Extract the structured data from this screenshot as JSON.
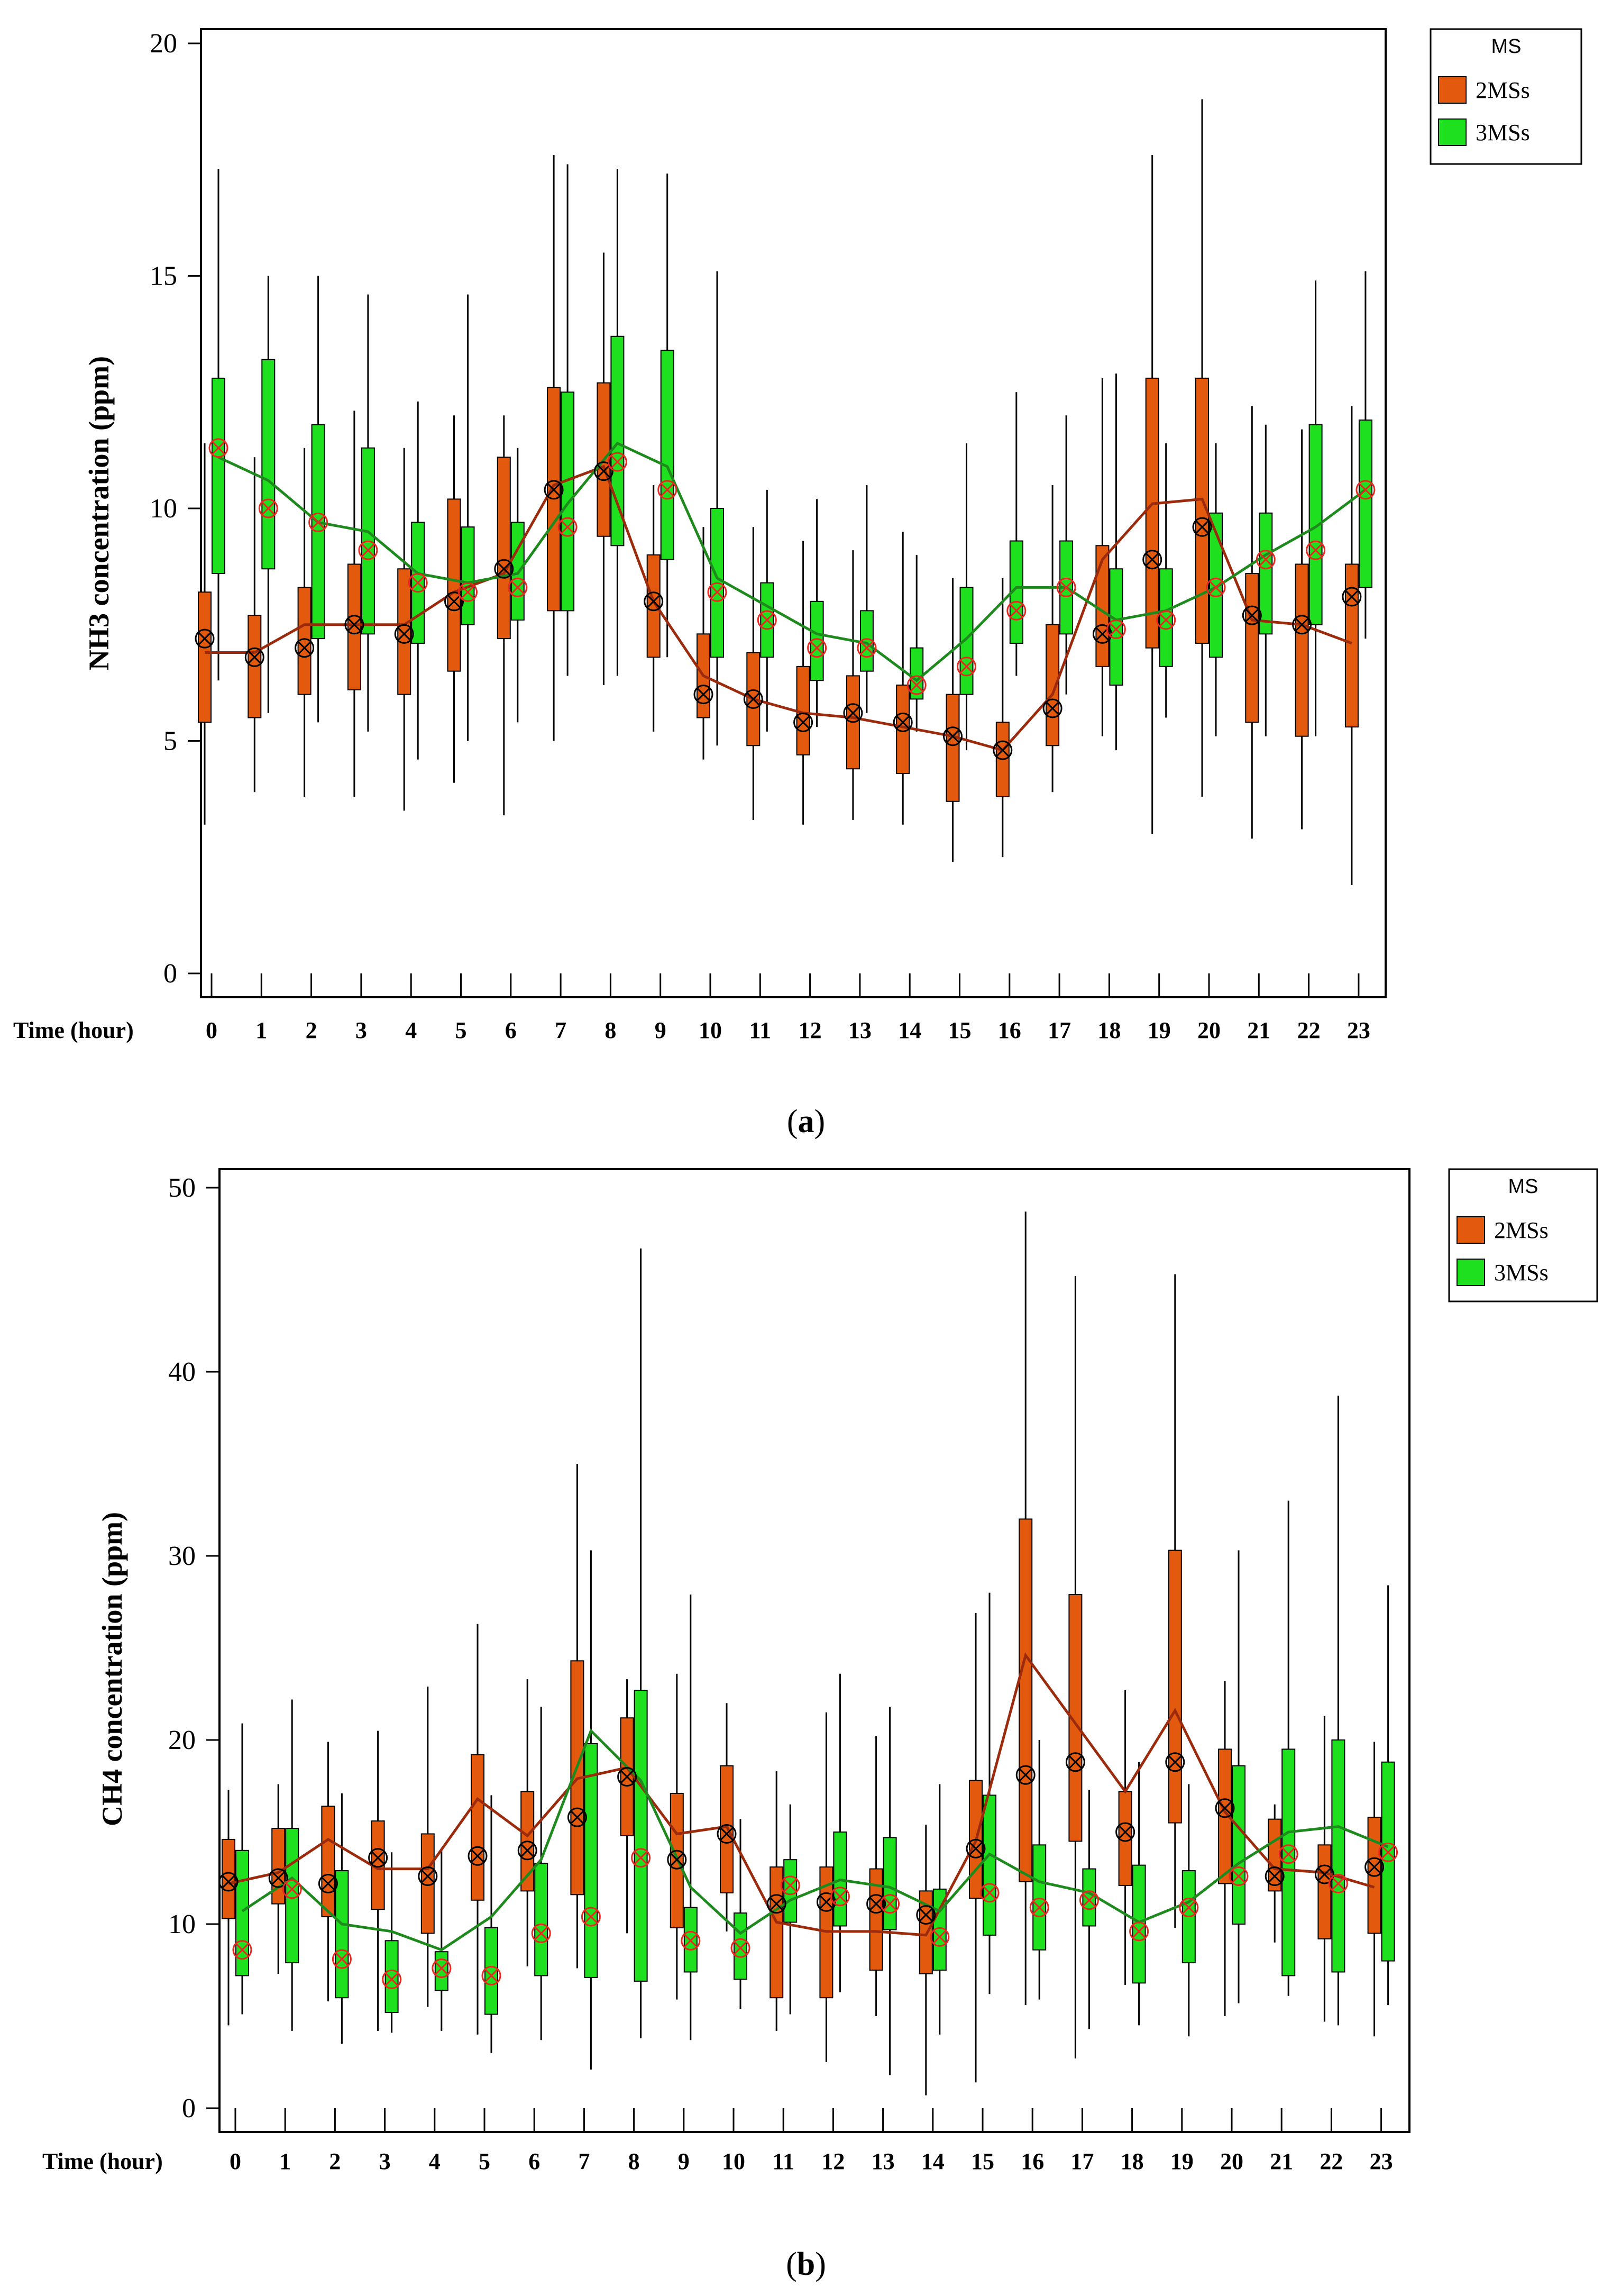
{
  "colors": {
    "c2MSs": "#e35a0e",
    "c3MSs": "#1ee01e",
    "line2": "#9b2b0c",
    "line3": "#1e8a1e",
    "meanBlack": "#000000",
    "meanRed": "#e8281e"
  },
  "chart_data": [
    {
      "id": "a",
      "type": "box",
      "caption": {
        "open": "(",
        "letter": "a",
        "close": ")"
      },
      "ylabel": "NH3 concentration (ppm)",
      "xlabel": "Time (hour)",
      "ylim": [
        0,
        20
      ],
      "yticks": [
        0,
        5,
        10,
        15,
        20
      ],
      "hours": [
        "0",
        "1",
        "2",
        "3",
        "4",
        "5",
        "6",
        "7",
        "8",
        "9",
        "10",
        "11",
        "12",
        "13",
        "14",
        "15",
        "16",
        "17",
        "18",
        "19",
        "20",
        "21",
        "22",
        "23"
      ],
      "legend": {
        "title": "MS",
        "items": [
          {
            "label": "2MSs",
            "color": "#e35a0e"
          },
          {
            "label": "3MSs",
            "color": "#1ee01e"
          }
        ]
      },
      "series": [
        {
          "name": "2MSs",
          "q1": [
            5.4,
            5.5,
            6.0,
            6.1,
            6.0,
            6.5,
            7.2,
            7.8,
            9.4,
            6.8,
            5.5,
            4.9,
            4.7,
            4.4,
            4.3,
            3.7,
            3.8,
            4.9,
            6.6,
            7.0,
            7.1,
            5.4,
            5.1,
            5.3
          ],
          "q3": [
            8.2,
            7.7,
            8.3,
            8.8,
            8.7,
            10.2,
            11.1,
            12.6,
            12.7,
            9.0,
            7.3,
            6.9,
            6.6,
            6.4,
            6.2,
            6.0,
            5.4,
            7.5,
            9.2,
            12.8,
            12.8,
            8.6,
            8.8,
            8.8
          ],
          "lo": [
            3.2,
            3.9,
            3.8,
            3.8,
            3.5,
            4.1,
            3.4,
            5.0,
            6.2,
            5.2,
            4.6,
            3.3,
            3.2,
            3.3,
            3.2,
            2.4,
            2.5,
            3.9,
            5.1,
            3.0,
            3.8,
            2.9,
            3.1,
            1.9
          ],
          "hi": [
            11.4,
            11.1,
            11.3,
            12.1,
            11.3,
            12.0,
            12.0,
            17.6,
            15.5,
            10.5,
            9.6,
            9.6,
            9.3,
            9.1,
            9.5,
            8.5,
            8.5,
            10.5,
            12.8,
            17.6,
            18.8,
            12.2,
            11.7,
            12.2
          ],
          "median": [
            6.9,
            6.9,
            7.5,
            7.5,
            7.5,
            8.2,
            8.6,
            10.5,
            10.9,
            8.0,
            6.4,
            5.9,
            5.6,
            5.5,
            5.3,
            5.1,
            4.8,
            6.0,
            8.9,
            10.1,
            10.2,
            7.6,
            7.5,
            7.1
          ],
          "mean": [
            7.2,
            6.8,
            7.0,
            7.5,
            7.3,
            8.0,
            8.7,
            10.4,
            10.8,
            8.0,
            6.0,
            5.9,
            5.4,
            5.6,
            5.4,
            5.1,
            4.8,
            5.7,
            7.3,
            8.9,
            9.6,
            7.7,
            7.5,
            8.1
          ]
        },
        {
          "name": "3MSs",
          "q1": [
            8.6,
            8.7,
            7.2,
            7.3,
            7.1,
            7.5,
            7.6,
            7.8,
            9.2,
            8.9,
            6.8,
            6.8,
            6.3,
            6.5,
            5.9,
            6.0,
            7.1,
            7.3,
            6.2,
            6.6,
            6.8,
            7.3,
            7.5,
            8.3
          ],
          "q3": [
            12.8,
            13.2,
            11.8,
            11.3,
            9.7,
            9.6,
            9.7,
            12.5,
            13.7,
            13.4,
            10.0,
            8.4,
            8.0,
            7.8,
            7.0,
            8.3,
            9.3,
            9.3,
            8.7,
            8.7,
            9.9,
            9.9,
            11.8,
            11.9
          ],
          "lo": [
            6.3,
            5.6,
            5.4,
            5.2,
            4.6,
            5.0,
            5.4,
            6.4,
            6.4,
            6.8,
            4.9,
            5.2,
            5.3,
            5.6,
            5.2,
            4.8,
            6.4,
            6.0,
            4.8,
            5.5,
            5.1,
            5.1,
            5.1,
            7.2
          ],
          "hi": [
            17.3,
            15.0,
            15.0,
            14.6,
            12.3,
            14.6,
            11.3,
            17.4,
            17.3,
            17.2,
            15.1,
            10.4,
            10.2,
            10.5,
            9.0,
            11.4,
            12.5,
            12.0,
            12.9,
            11.4,
            11.4,
            11.8,
            14.9,
            15.1
          ],
          "median": [
            11.1,
            10.6,
            9.7,
            9.5,
            8.6,
            8.4,
            8.6,
            10.1,
            11.4,
            10.9,
            8.5,
            7.9,
            7.3,
            7.1,
            6.3,
            7.2,
            8.3,
            8.3,
            7.6,
            7.8,
            8.3,
            9.0,
            9.6,
            10.4
          ],
          "mean": [
            11.3,
            10.0,
            9.7,
            9.1,
            8.4,
            8.2,
            8.3,
            9.6,
            11.0,
            10.4,
            8.2,
            7.6,
            7.0,
            7.0,
            6.2,
            6.6,
            7.8,
            8.3,
            7.4,
            7.6,
            8.3,
            8.9,
            9.1,
            10.4
          ]
        }
      ]
    },
    {
      "id": "b",
      "type": "box",
      "caption": {
        "open": "(",
        "letter": "b",
        "close": ")"
      },
      "ylabel": "CH4 concentration (ppm)",
      "xlabel": "Time (hour)",
      "ylim": [
        0,
        50
      ],
      "yticks": [
        0,
        10,
        20,
        30,
        40,
        50
      ],
      "hours": [
        "0",
        "1",
        "2",
        "3",
        "4",
        "5",
        "6",
        "7",
        "8",
        "9",
        "10",
        "11",
        "12",
        "13",
        "14",
        "15",
        "16",
        "17",
        "18",
        "19",
        "20",
        "21",
        "22",
        "23"
      ],
      "legend": {
        "title": "MS",
        "items": [
          {
            "label": "2MSs",
            "color": "#e35a0e"
          },
          {
            "label": "3MSs",
            "color": "#1ee01e"
          }
        ]
      },
      "series": [
        {
          "name": "2MSs",
          "q1": [
            10.3,
            11.1,
            10.4,
            10.8,
            9.5,
            11.3,
            11.8,
            11.6,
            14.8,
            9.8,
            11.7,
            6.0,
            6.0,
            7.5,
            7.3,
            11.4,
            12.3,
            14.5,
            12.1,
            15.5,
            12.2,
            11.8,
            9.2,
            9.5
          ],
          "q3": [
            14.6,
            15.2,
            16.4,
            15.6,
            14.9,
            19.2,
            17.2,
            24.3,
            21.2,
            17.1,
            18.6,
            13.1,
            13.1,
            13.0,
            11.8,
            17.8,
            32.0,
            27.9,
            17.2,
            30.3,
            19.5,
            15.7,
            14.3,
            15.8
          ],
          "lo": [
            4.5,
            7.3,
            5.8,
            4.2,
            5.5,
            4.0,
            7.7,
            7.6,
            9.5,
            5.9,
            9.6,
            4.2,
            2.5,
            5.0,
            0.7,
            1.4,
            5.6,
            2.7,
            6.7,
            9.8,
            5.0,
            9.0,
            4.7,
            3.9
          ],
          "hi": [
            17.3,
            17.6,
            19.9,
            20.5,
            22.9,
            26.3,
            23.3,
            35.0,
            23.3,
            23.6,
            22.0,
            18.3,
            21.5,
            20.2,
            15.4,
            26.9,
            48.7,
            45.2,
            22.7,
            45.3,
            23.2,
            16.5,
            21.3,
            19.9
          ],
          "median": [
            12.2,
            12.8,
            14.6,
            13.0,
            13.0,
            16.8,
            14.8,
            17.9,
            18.5,
            14.9,
            15.3,
            10.1,
            9.6,
            9.6,
            9.4,
            14.5,
            24.6,
            20.9,
            17.2,
            21.6,
            16.1,
            13.0,
            12.8,
            12.0
          ],
          "mean": [
            12.3,
            12.5,
            12.2,
            13.6,
            12.6,
            13.7,
            14.0,
            15.8,
            18.0,
            13.5,
            14.9,
            11.1,
            11.2,
            11.1,
            10.5,
            14.1,
            18.1,
            18.8,
            15.0,
            18.8,
            16.3,
            12.6,
            12.7,
            13.1
          ]
        },
        {
          "name": "3MSs",
          "q1": [
            7.2,
            7.9,
            6.0,
            5.2,
            6.4,
            5.1,
            7.2,
            7.1,
            6.9,
            7.4,
            7.0,
            10.1,
            9.9,
            9.7,
            7.5,
            9.4,
            8.6,
            9.9,
            6.8,
            7.9,
            10.0,
            7.2,
            7.4,
            8.0
          ],
          "q3": [
            14.0,
            15.2,
            12.9,
            9.1,
            8.5,
            9.8,
            13.3,
            19.8,
            22.7,
            10.9,
            10.6,
            13.5,
            15.0,
            14.7,
            11.9,
            17.0,
            14.3,
            13.0,
            13.2,
            12.9,
            18.6,
            19.5,
            20.0,
            18.8
          ],
          "lo": [
            5.1,
            4.2,
            3.5,
            4.1,
            4.2,
            3.0,
            3.7,
            2.1,
            3.8,
            3.7,
            5.4,
            5.1,
            6.3,
            1.8,
            4.0,
            6.2,
            5.9,
            4.3,
            4.5,
            3.9,
            5.7,
            6.1,
            4.5,
            5.6
          ],
          "hi": [
            20.9,
            22.2,
            17.1,
            13.9,
            14.1,
            17.0,
            21.8,
            30.3,
            46.7,
            27.9,
            15.7,
            16.5,
            23.6,
            21.8,
            17.6,
            28.0,
            20.0,
            17.3,
            18.8,
            17.6,
            30.3,
            33.0,
            38.7,
            28.4
          ],
          "median": [
            10.7,
            12.5,
            10.0,
            9.6,
            8.6,
            10.4,
            13.5,
            20.5,
            17.8,
            12.0,
            9.5,
            11.3,
            12.4,
            12.0,
            10.7,
            13.8,
            12.3,
            11.7,
            10.1,
            11.2,
            13.3,
            15.0,
            15.3,
            14.2
          ],
          "mean": [
            8.6,
            11.9,
            8.1,
            7.0,
            7.6,
            7.2,
            9.5,
            10.4,
            13.6,
            9.1,
            8.7,
            12.1,
            11.5,
            11.1,
            9.3,
            11.7,
            10.9,
            11.3,
            9.6,
            10.9,
            12.6,
            13.8,
            12.2,
            13.9
          ]
        }
      ]
    }
  ]
}
